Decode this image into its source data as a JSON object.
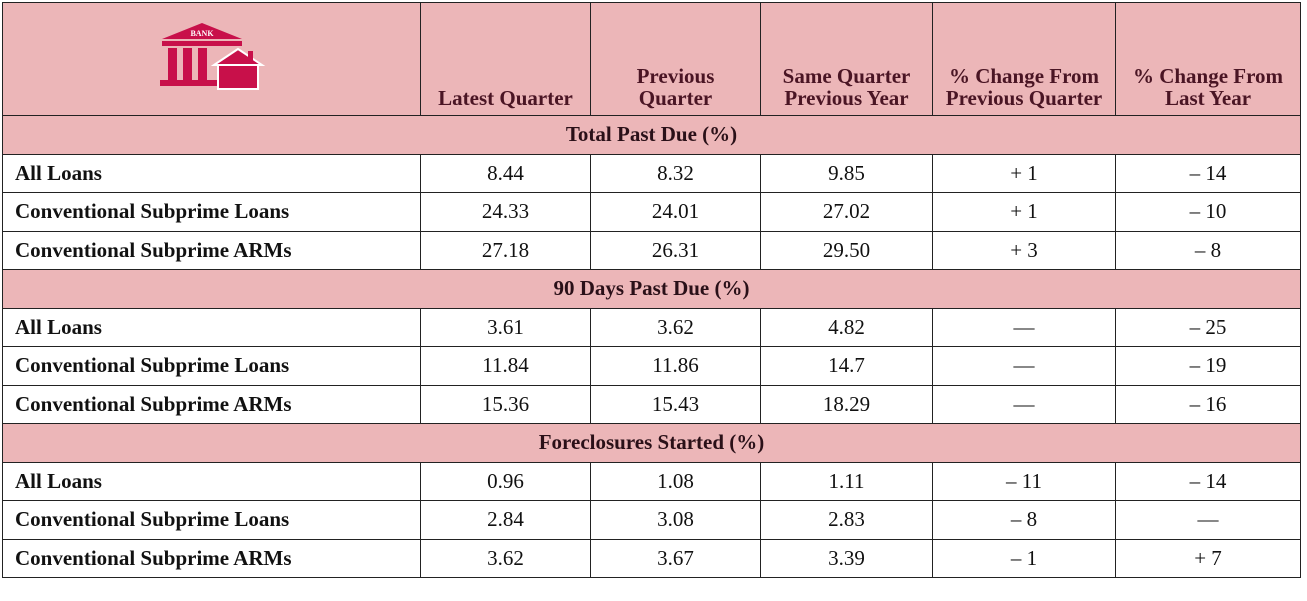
{
  "icon_label": "BANK",
  "header": {
    "columns": [
      "Latest Quarter",
      "Previous Quarter",
      "Same Quarter Previous Year",
      "% Change From Previous Quarter",
      "% Change From Last Year"
    ]
  },
  "sections": [
    {
      "title": "Total Past Due (%)",
      "rows": [
        {
          "label": "All Loans",
          "values": [
            "8.44",
            "8.32",
            "9.85",
            "+ 1",
            "– 14"
          ]
        },
        {
          "label": "Conventional Subprime Loans",
          "values": [
            "24.33",
            "24.01",
            "27.02",
            "+ 1",
            "– 10"
          ]
        },
        {
          "label": "Conventional Subprime ARMs",
          "values": [
            "27.18",
            "26.31",
            "29.50",
            "+ 3",
            "– 8"
          ]
        }
      ]
    },
    {
      "title": "90 Days Past Due (%)",
      "rows": [
        {
          "label": "All Loans",
          "values": [
            "3.61",
            "3.62",
            "4.82",
            "—",
            "– 25"
          ]
        },
        {
          "label": "Conventional Subprime Loans",
          "values": [
            "11.84",
            "11.86",
            "14.7",
            "—",
            "– 19"
          ]
        },
        {
          "label": "Conventional Subprime ARMs",
          "values": [
            "15.36",
            "15.43",
            "18.29",
            "—",
            "– 16"
          ]
        }
      ]
    },
    {
      "title": "Foreclosures Started (%)",
      "rows": [
        {
          "label": "All Loans",
          "values": [
            "0.96",
            "1.08",
            "1.11",
            "– 11",
            "– 14"
          ]
        },
        {
          "label": "Conventional Subprime Loans",
          "values": [
            "2.84",
            "3.08",
            "2.83",
            "– 8",
            "—"
          ]
        },
        {
          "label": "Conventional Subprime ARMs",
          "values": [
            "3.62",
            "3.67",
            "3.39",
            "– 1",
            "+ 7"
          ]
        }
      ]
    }
  ]
}
